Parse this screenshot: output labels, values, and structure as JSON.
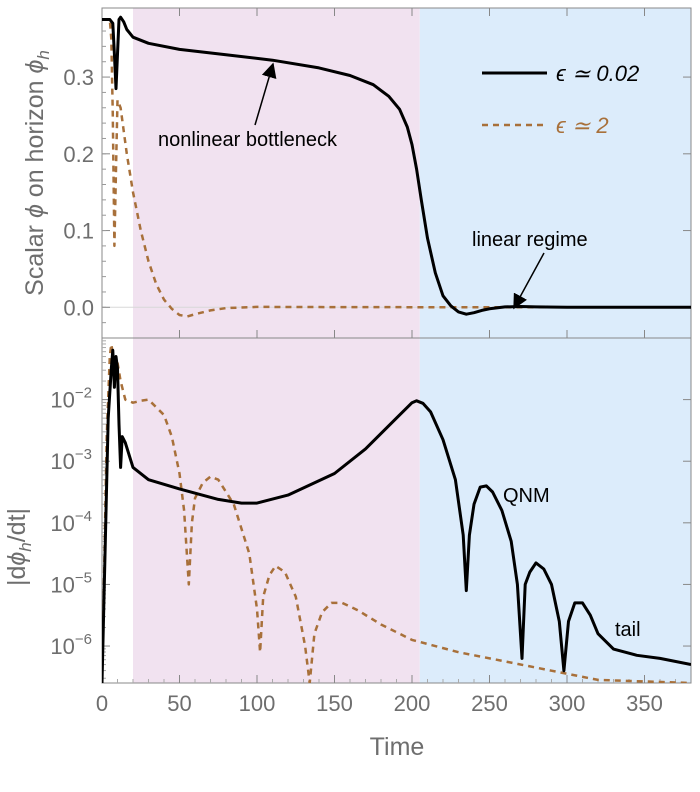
{
  "chart_data": {
    "type": "line",
    "xlabel": "Time",
    "xlim": [
      0,
      380
    ],
    "x_ticks": [
      0,
      50,
      100,
      150,
      200,
      250,
      300,
      350
    ],
    "colors": {
      "eps_small": "#000000",
      "eps_large": "#a8703a",
      "region_nonlinear": "#f1e2f0",
      "region_linear": "#dcecfb",
      "frame": "#888888"
    },
    "regions": [
      {
        "name": "nonlinear",
        "x_range": [
          20,
          205
        ]
      },
      {
        "name": "linear",
        "x_range": [
          205,
          380
        ]
      }
    ],
    "legend": [
      {
        "label": "ϵ ≃ 0.02",
        "style": "solid"
      },
      {
        "label": "ϵ ≃ 2",
        "style": "dashed"
      }
    ],
    "panels": [
      {
        "name": "top",
        "ylabel": "Scalar ϕ on horizon ϕh",
        "ylabel_main": "Scalar ",
        "ylabel_phi": "ϕ",
        "ylabel_mid": " on horizon ",
        "ylabel_sub": "h",
        "ylim": [
          -0.04,
          0.39
        ],
        "y_ticks": [
          {
            "value": 0.0,
            "label": "0.0"
          },
          {
            "value": 0.1,
            "label": "0.1"
          },
          {
            "value": 0.2,
            "label": "0.2"
          },
          {
            "value": 0.3,
            "label": "0.3"
          }
        ],
        "series": [
          {
            "name": "ϵ ≃ 0.02",
            "key": "eps_small",
            "x": [
              0,
              3,
              5,
              7,
              8,
              9,
              10,
              11,
              12,
              14,
              16,
              20,
              30,
              50,
              80,
              110,
              140,
              160,
              175,
              185,
              192,
              197,
              200,
              203,
              206,
              210,
              215,
              220,
              225,
              230,
              235,
              240,
              245,
              250,
              260,
              270,
              280,
              300,
              340,
              380
            ],
            "y": [
              0.375,
              0.375,
              0.375,
              0.37,
              0.33,
              0.285,
              0.33,
              0.375,
              0.378,
              0.372,
              0.362,
              0.352,
              0.344,
              0.336,
              0.329,
              0.322,
              0.312,
              0.302,
              0.29,
              0.275,
              0.258,
              0.235,
              0.212,
              0.18,
              0.14,
              0.09,
              0.045,
              0.015,
              0.002,
              -0.006,
              -0.009,
              -0.007,
              -0.004,
              -0.002,
              0.0005,
              0.001,
              0.0005,
              0.0,
              0.0,
              0.0
            ]
          },
          {
            "name": "ϵ ≃ 2",
            "key": "eps_large",
            "x": [
              0,
              5,
              6,
              7,
              8,
              9,
              10,
              12,
              14,
              16,
              20,
              25,
              30,
              35,
              40,
              45,
              50,
              55,
              60,
              70,
              80,
              100,
              150,
              200,
              250,
              300,
              380
            ],
            "y": [
              0.375,
              0.375,
              0.35,
              0.25,
              0.08,
              0.18,
              0.27,
              0.26,
              0.23,
              0.2,
              0.15,
              0.1,
              0.06,
              0.03,
              0.01,
              -0.002,
              -0.01,
              -0.012,
              -0.009,
              -0.004,
              -0.001,
              0.0005,
              0.0003,
              0.0001,
              0.0,
              0.0,
              0.0
            ]
          }
        ],
        "annotations": [
          {
            "text": "nonlinear bottleneck",
            "arrow_to": [
              110,
              0.32
            ]
          },
          {
            "text": "linear regime",
            "arrow_to": [
              262,
              0.002
            ]
          }
        ]
      },
      {
        "name": "bottom",
        "ylabel": "|dϕh/dt|",
        "ylabel_pre": "|d",
        "ylabel_phi": "ϕ",
        "ylabel_sub": "h",
        "ylabel_post": "/dt|",
        "yscale": "log",
        "ylim_log10": [
          -6.6,
          -1.0
        ],
        "y_ticks": [
          {
            "exp": -2,
            "base": "10",
            "power": "−2"
          },
          {
            "exp": -3,
            "base": "10",
            "power": "−3"
          },
          {
            "exp": -4,
            "base": "10",
            "power": "−4"
          },
          {
            "exp": -5,
            "base": "10",
            "power": "−5"
          },
          {
            "exp": -6,
            "base": "10",
            "power": "−6"
          }
        ],
        "series": [
          {
            "name": "ϵ ≃ 0.02",
            "key": "eps_small",
            "x": [
              0,
              4,
              6,
              7,
              8,
              9,
              10,
              11,
              12,
              13,
              15,
              20,
              30,
              50,
              75,
              90,
              100,
              120,
              150,
              170,
              190,
              200,
              203,
              207,
              212,
              220,
              228,
              233,
              235,
              237,
              240,
              244,
              248,
              252,
              258,
              264,
              268,
              271,
              273,
              276,
              280,
              285,
              290,
              295,
              298,
              301,
              305,
              310,
              315,
              320,
              330,
              345,
              360,
              380
            ],
            "y": [
              -6.6,
              -2.3,
              -1.5,
              -1.2,
              -1.8,
              -1.3,
              -1.5,
              -2.4,
              -3.1,
              -2.6,
              -2.7,
              -3.1,
              -3.3,
              -3.45,
              -3.62,
              -3.68,
              -3.68,
              -3.55,
              -3.2,
              -2.8,
              -2.3,
              -2.05,
              -2.02,
              -2.06,
              -2.2,
              -2.65,
              -3.3,
              -4.2,
              -5.1,
              -4.2,
              -3.7,
              -3.42,
              -3.4,
              -3.5,
              -3.8,
              -4.3,
              -5.0,
              -6.2,
              -5.0,
              -4.8,
              -4.65,
              -4.75,
              -5.0,
              -5.6,
              -6.4,
              -5.6,
              -5.3,
              -5.3,
              -5.5,
              -5.8,
              -6.05,
              -6.15,
              -6.2,
              -6.3
            ]
          },
          {
            "name": "ϵ ≃ 2",
            "key": "eps_large",
            "x": [
              0,
              3,
              5,
              6,
              7,
              8,
              9,
              10,
              12,
              15,
              20,
              25,
              30,
              40,
              45,
              50,
              53,
              56,
              58,
              60,
              65,
              70,
              75,
              85,
              95,
              100,
              102,
              104,
              108,
              112,
              118,
              125,
              131,
              134,
              137,
              142,
              148,
              155,
              165,
              180,
              200,
              230,
              260,
              290,
              320,
              380
            ],
            "y": [
              -6.6,
              -2.6,
              -1.3,
              -1.1,
              -1.25,
              -1.7,
              -1.3,
              -1.4,
              -1.7,
              -2.0,
              -2.05,
              -2.02,
              -2.0,
              -2.25,
              -2.6,
              -3.2,
              -3.8,
              -5.0,
              -4.0,
              -3.6,
              -3.35,
              -3.25,
              -3.3,
              -3.7,
              -4.5,
              -5.4,
              -6.1,
              -5.2,
              -4.85,
              -4.7,
              -4.8,
              -5.2,
              -6.0,
              -6.6,
              -5.8,
              -5.45,
              -5.3,
              -5.3,
              -5.42,
              -5.65,
              -5.9,
              -6.1,
              -6.25,
              -6.4,
              -6.55,
              -6.6
            ]
          }
        ],
        "annotations": [
          {
            "text": "QNM"
          },
          {
            "text": "tail"
          }
        ]
      }
    ]
  }
}
